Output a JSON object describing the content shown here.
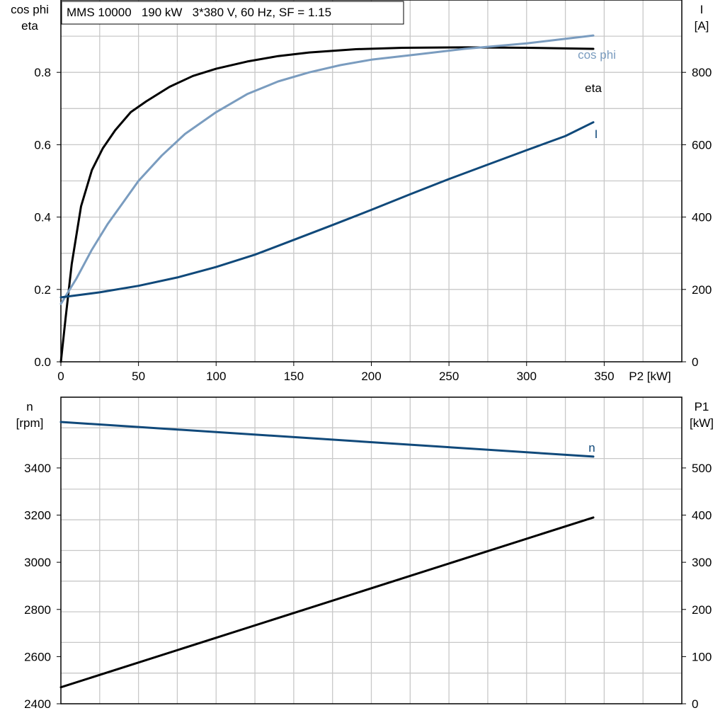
{
  "title": "MMS 10000   190 kW   3*380 V, 60 Hz, SF = 1.15",
  "colors": {
    "black": "#000000",
    "cos_phi": "#7a9cbf",
    "current": "#10497a",
    "speed": "#10497a",
    "grid": "#c8c8c8"
  },
  "chart_data": [
    {
      "type": "line",
      "x_label": "P2 [kW]",
      "x_ticks": [
        "0",
        "50",
        "100",
        "150",
        "200",
        "250",
        "300",
        "350"
      ],
      "xlim": [
        0,
        400
      ],
      "left_axis": {
        "label_line1": "cos phi",
        "label_line2": "eta",
        "ylim": [
          0,
          1.0
        ],
        "ticks": [
          0,
          0.2,
          0.4,
          0.6,
          0.8
        ],
        "tick_labels": [
          "0.0",
          "0.2",
          "0.4",
          "0.6",
          "0.8"
        ]
      },
      "right_axis": {
        "label_line1": "I",
        "label_line2": "[A]",
        "ylim": [
          0,
          1000
        ],
        "ticks": [
          0,
          200,
          400,
          600,
          800
        ],
        "tick_labels": [
          "0",
          "200",
          "400",
          "600",
          "800"
        ]
      },
      "grid": true,
      "series": [
        {
          "name": "eta",
          "axis": "left",
          "color": "#000000",
          "x": [
            0,
            3,
            7,
            13,
            20,
            27,
            35,
            45,
            55,
            70,
            85,
            100,
            120,
            140,
            160,
            190,
            220,
            260,
            300,
            343
          ],
          "y": [
            0,
            0.12,
            0.27,
            0.43,
            0.53,
            0.59,
            0.64,
            0.69,
            0.72,
            0.76,
            0.79,
            0.81,
            0.83,
            0.845,
            0.855,
            0.864,
            0.868,
            0.869,
            0.868,
            0.865
          ]
        },
        {
          "name": "cos phi",
          "axis": "left",
          "color": "#7a9cbf",
          "x": [
            0,
            10,
            20,
            30,
            40,
            50,
            65,
            80,
            100,
            120,
            140,
            160,
            180,
            200,
            230,
            260,
            300,
            343
          ],
          "y": [
            0.16,
            0.23,
            0.31,
            0.38,
            0.44,
            0.5,
            0.57,
            0.63,
            0.69,
            0.74,
            0.775,
            0.8,
            0.82,
            0.835,
            0.85,
            0.865,
            0.88,
            0.902
          ]
        },
        {
          "name": "I",
          "axis": "right",
          "color": "#10497a",
          "x": [
            0,
            25,
            50,
            75,
            100,
            125,
            150,
            175,
            200,
            225,
            250,
            275,
            300,
            325,
            343
          ],
          "y": [
            178,
            192,
            210,
            233,
            262,
            296,
            337,
            378,
            420,
            463,
            505,
            545,
            585,
            624,
            662
          ]
        }
      ]
    },
    {
      "type": "line",
      "xlim": [
        0,
        400
      ],
      "left_axis": {
        "label_line1": "n",
        "label_line2": "[rpm]",
        "ylim": [
          2400,
          3700
        ],
        "ticks": [
          2400,
          2600,
          2800,
          3000,
          3200,
          3400
        ],
        "tick_labels": [
          "2400",
          "2600",
          "2800",
          "3000",
          "3200",
          "3400"
        ]
      },
      "right_axis": {
        "label_line1": "P1",
        "label_line2": "[kW]",
        "ylim": [
          0,
          650
        ],
        "ticks": [
          0,
          100,
          200,
          300,
          400,
          500
        ],
        "tick_labels": [
          "0",
          "100",
          "200",
          "300",
          "400",
          "500"
        ]
      },
      "grid": true,
      "series": [
        {
          "name": "n",
          "axis": "left",
          "color": "#10497a",
          "x": [
            0,
            343
          ],
          "y": [
            3595,
            3448
          ]
        },
        {
          "name": "P1",
          "axis": "right",
          "color": "#000000",
          "x": [
            0,
            343
          ],
          "y": [
            35,
            395
          ]
        }
      ]
    }
  ]
}
